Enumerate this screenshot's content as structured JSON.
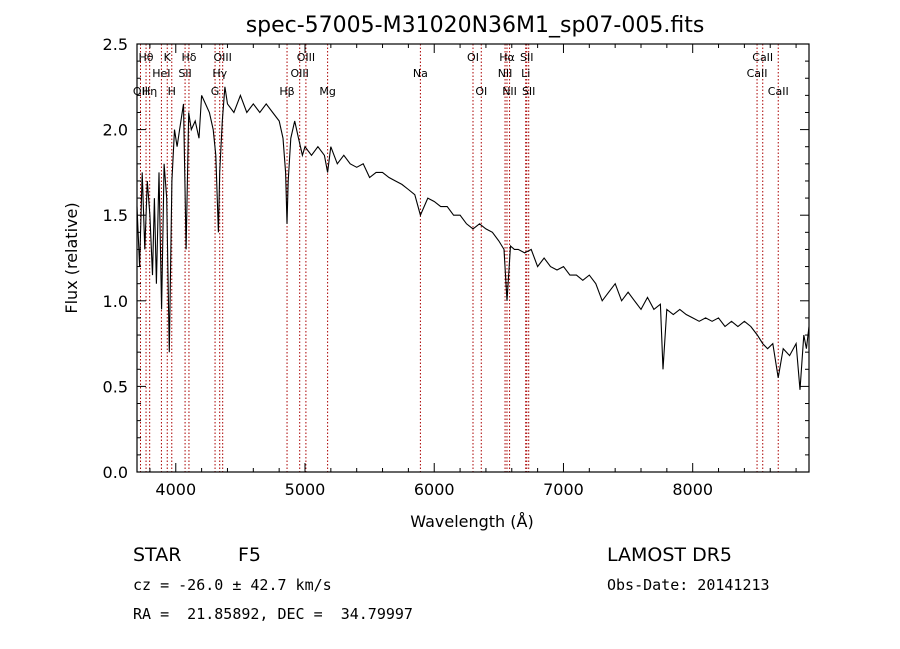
{
  "chart_data": {
    "type": "line",
    "title": "spec-57005-M31020N36M1_sp07-005.fits",
    "xlabel": "Wavelength (Å)",
    "ylabel": "Flux (relative)",
    "xlim": [
      3700,
      8900
    ],
    "ylim": [
      0,
      2.5
    ],
    "x_ticks": [
      "4000",
      "5000",
      "6000",
      "7000",
      "8000"
    ],
    "y_ticks": [
      "0.0",
      "0.5",
      "1.0",
      "1.5",
      "2.0",
      "2.5"
    ],
    "grid": false,
    "legend": "none",
    "line_color": "#000000",
    "marker_color": "#aa0000",
    "series": [
      {
        "x": [
          3700,
          3720,
          3740,
          3760,
          3780,
          3800,
          3820,
          3835,
          3850,
          3870,
          3890,
          3910,
          3930,
          3950,
          3970,
          3990,
          4010,
          4030,
          4060,
          4080,
          4100,
          4120,
          4150,
          4180,
          4200,
          4230,
          4260,
          4290,
          4310,
          4330,
          4340,
          4360,
          4380,
          4400,
          4450,
          4500,
          4550,
          4600,
          4650,
          4700,
          4750,
          4800,
          4830,
          4850,
          4861,
          4870,
          4890,
          4920,
          4950,
          4980,
          5000,
          5050,
          5100,
          5150,
          5175,
          5200,
          5250,
          5300,
          5350,
          5400,
          5450,
          5500,
          5550,
          5600,
          5650,
          5700,
          5750,
          5800,
          5850,
          5893,
          5950,
          6000,
          6050,
          6100,
          6150,
          6200,
          6250,
          6300,
          6350,
          6400,
          6450,
          6500,
          6540,
          6563,
          6590,
          6620,
          6650,
          6700,
          6750,
          6800,
          6850,
          6900,
          6950,
          7000,
          7050,
          7100,
          7150,
          7200,
          7250,
          7300,
          7350,
          7400,
          7450,
          7500,
          7550,
          7600,
          7650,
          7700,
          7750,
          7770,
          7800,
          7850,
          7900,
          7950,
          8000,
          8050,
          8100,
          8150,
          8200,
          8250,
          8300,
          8350,
          8400,
          8450,
          8500,
          8542,
          8580,
          8620,
          8662,
          8700,
          8750,
          8800,
          8830,
          8860,
          8880,
          8900
        ],
        "y": [
          1.55,
          1.2,
          1.75,
          1.3,
          1.7,
          1.5,
          1.15,
          1.6,
          1.1,
          1.75,
          0.95,
          1.8,
          1.6,
          0.7,
          1.7,
          2.0,
          1.9,
          2.0,
          2.15,
          1.3,
          2.1,
          2.0,
          2.05,
          1.95,
          2.2,
          2.15,
          2.1,
          2.0,
          1.85,
          1.4,
          1.75,
          2.05,
          2.25,
          2.15,
          2.1,
          2.2,
          2.1,
          2.15,
          2.1,
          2.15,
          2.1,
          2.05,
          1.95,
          1.75,
          1.45,
          1.7,
          1.95,
          2.05,
          1.95,
          1.85,
          1.9,
          1.85,
          1.9,
          1.85,
          1.75,
          1.9,
          1.8,
          1.85,
          1.8,
          1.78,
          1.8,
          1.72,
          1.75,
          1.75,
          1.72,
          1.7,
          1.68,
          1.65,
          1.62,
          1.5,
          1.6,
          1.58,
          1.55,
          1.55,
          1.5,
          1.5,
          1.45,
          1.42,
          1.45,
          1.42,
          1.4,
          1.35,
          1.3,
          1.0,
          1.32,
          1.3,
          1.3,
          1.28,
          1.3,
          1.2,
          1.25,
          1.2,
          1.18,
          1.2,
          1.15,
          1.15,
          1.12,
          1.15,
          1.1,
          1.0,
          1.05,
          1.1,
          1.0,
          1.05,
          1.0,
          0.95,
          1.02,
          0.95,
          0.98,
          0.6,
          0.95,
          0.92,
          0.95,
          0.92,
          0.9,
          0.88,
          0.9,
          0.88,
          0.9,
          0.85,
          0.88,
          0.85,
          0.88,
          0.85,
          0.8,
          0.75,
          0.72,
          0.75,
          0.55,
          0.72,
          0.68,
          0.75,
          0.48,
          0.8,
          0.72,
          0.85
        ]
      }
    ],
    "lines": [
      {
        "x": 3727,
        "label": "OII",
        "row": 3
      },
      {
        "x": 3770,
        "label": "Hθ",
        "row": 1
      },
      {
        "x": 3798,
        "label": "Hη",
        "row": 3
      },
      {
        "x": 3889,
        "label": "HeI",
        "row": 2
      },
      {
        "x": 3934,
        "label": "K",
        "row": 1
      },
      {
        "x": 3969,
        "label": "H",
        "row": 3
      },
      {
        "x": 4072,
        "label": "SII",
        "row": 2
      },
      {
        "x": 4102,
        "label": "Hδ",
        "row": 1
      },
      {
        "x": 4304,
        "label": "G",
        "row": 3
      },
      {
        "x": 4340,
        "label": "Hγ",
        "row": 2
      },
      {
        "x": 4363,
        "label": "OIII",
        "row": 1
      },
      {
        "x": 4861,
        "label": "Hβ",
        "row": 3
      },
      {
        "x": 4959,
        "label": "OIII",
        "row": 2
      },
      {
        "x": 5007,
        "label": "OIII",
        "row": 1
      },
      {
        "x": 5175,
        "label": "Mg",
        "row": 3
      },
      {
        "x": 5893,
        "label": "Na",
        "row": 2
      },
      {
        "x": 6300,
        "label": "OI",
        "row": 1
      },
      {
        "x": 6364,
        "label": "OI",
        "row": 3
      },
      {
        "x": 6548,
        "label": "NII",
        "row": 2
      },
      {
        "x": 6563,
        "label": "Hα",
        "row": 1
      },
      {
        "x": 6583,
        "label": "NII",
        "row": 3
      },
      {
        "x": 6708,
        "label": "Li",
        "row": 2
      },
      {
        "x": 6716,
        "label": "SII",
        "row": 1
      },
      {
        "x": 6731,
        "label": "SII",
        "row": 3
      },
      {
        "x": 8498,
        "label": "CaII",
        "row": 2
      },
      {
        "x": 8542,
        "label": "CaII",
        "row": 1
      },
      {
        "x": 8662,
        "label": "CaII",
        "row": 3
      }
    ]
  },
  "info": {
    "class_label": "STAR",
    "subclass": "F5",
    "survey": "LAMOST DR5",
    "cz": "cz = -26.0 ± 42.7 km/s",
    "obs_date": "Obs-Date: 20141213",
    "coords": "RA =  21.85892, DEC =  34.79997"
  }
}
